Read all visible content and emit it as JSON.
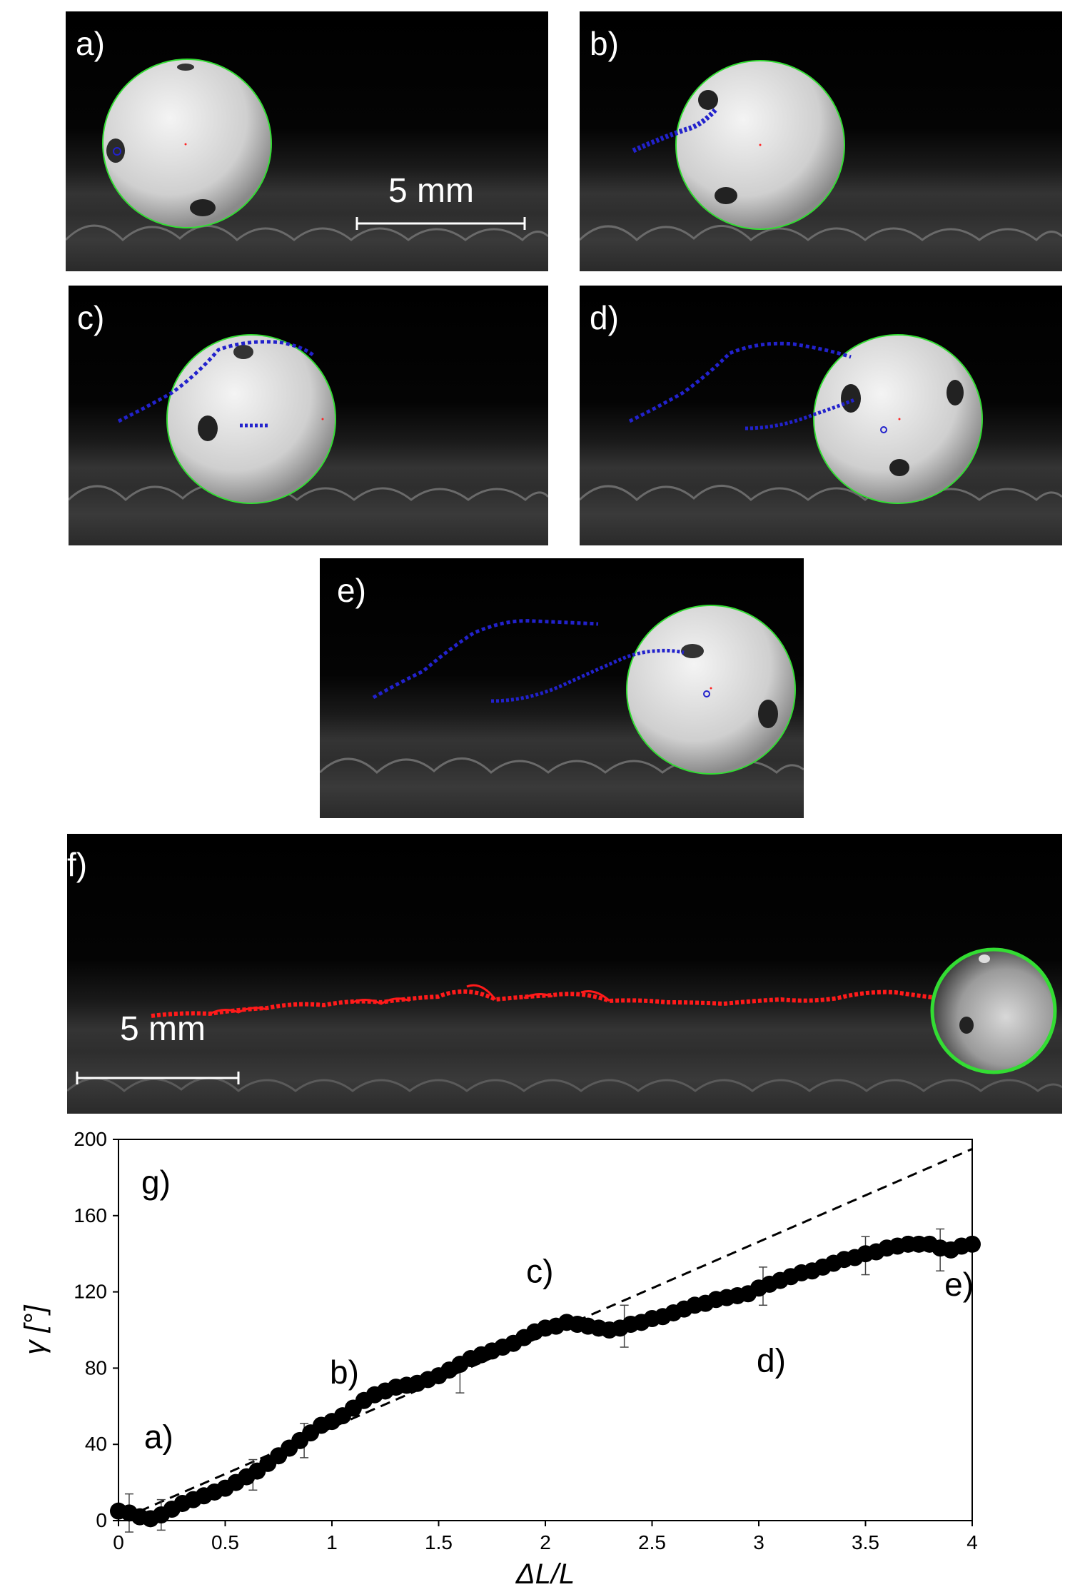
{
  "panels": {
    "a": {
      "label": "a)",
      "scale_label": "5 mm"
    },
    "b": {
      "label": "b)"
    },
    "c": {
      "label": "c)"
    },
    "d": {
      "label": "d)"
    },
    "e": {
      "label": "e)"
    },
    "f": {
      "label": "f)",
      "scale_label": "5 mm"
    }
  },
  "colors": {
    "circle": "#33dd33",
    "trajectory_blue": "#2222cc",
    "trajectory_red": "#ff1a1a",
    "center_dot": "#ff2222"
  },
  "chart_data": {
    "type": "scatter",
    "panel_label": "g)",
    "xlabel": "ΔL/L",
    "ylabel": "γ [°]",
    "xlim": [
      0,
      4
    ],
    "ylim": [
      0,
      200
    ],
    "xticks": [
      "0",
      "0.5",
      "1",
      "1.5",
      "2",
      "2.5",
      "3",
      "3.5",
      "4"
    ],
    "yticks": [
      "0",
      "40",
      "80",
      "120",
      "160",
      "200"
    ],
    "xtick_values": [
      0,
      0.5,
      1,
      1.5,
      2,
      2.5,
      3,
      3.5,
      4
    ],
    "ytick_values": [
      0,
      40,
      80,
      120,
      160,
      200
    ],
    "series": [
      {
        "values_x": [
          0,
          0.05,
          0.1,
          0.15,
          0.2,
          0.25,
          0.3,
          0.35,
          0.4,
          0.45,
          0.5,
          0.55,
          0.6,
          0.65,
          0.7,
          0.75,
          0.8,
          0.85,
          0.9,
          0.95,
          1.0,
          1.05,
          1.1,
          1.15,
          1.2,
          1.25,
          1.3,
          1.35,
          1.4,
          1.45,
          1.5,
          1.55,
          1.6,
          1.65,
          1.7,
          1.75,
          1.8,
          1.85,
          1.9,
          1.95,
          2.0,
          2.05,
          2.1,
          2.15,
          2.2,
          2.25,
          2.3,
          2.35,
          2.4,
          2.45,
          2.5,
          2.55,
          2.6,
          2.65,
          2.7,
          2.75,
          2.8,
          2.85,
          2.9,
          2.95,
          3.0,
          3.05,
          3.1,
          3.15,
          3.2,
          3.25,
          3.3,
          3.35,
          3.4,
          3.45,
          3.5,
          3.55,
          3.6,
          3.65,
          3.7,
          3.75,
          3.8,
          3.85,
          3.9,
          3.95,
          4.0
        ],
        "values_y": [
          5,
          4,
          2,
          1,
          3,
          6,
          9,
          11,
          13,
          15,
          17,
          20,
          23,
          26,
          30,
          34,
          38,
          42,
          46,
          50,
          52,
          55,
          59,
          63,
          66,
          68,
          70,
          71,
          72,
          74,
          76,
          79,
          82,
          85,
          87,
          89,
          91,
          93,
          96,
          99,
          101,
          102,
          104,
          103,
          102,
          101,
          100,
          101,
          103,
          104,
          106,
          107,
          109,
          111,
          113,
          114,
          116,
          117,
          118,
          119,
          122,
          124,
          126,
          128,
          130,
          131,
          133,
          135,
          137,
          138,
          140,
          141,
          143,
          144,
          145,
          145,
          145,
          143,
          142,
          144,
          145
        ],
        "error_bar_x": [
          0.05,
          0.2,
          0.63,
          0.87,
          1.6,
          2.37,
          3.02,
          3.5,
          3.85
        ],
        "error_bar_y": [
          4,
          3,
          24,
          42,
          76,
          102,
          123,
          139,
          142
        ],
        "error_bar_half": [
          10,
          8,
          8,
          9,
          9,
          11,
          10,
          10,
          11
        ]
      }
    ],
    "fit_line": {
      "x": [
        0.1,
        4
      ],
      "y": [
        5,
        195
      ],
      "style": "dashed"
    },
    "annotations": [
      {
        "text": "a)",
        "x": 0.12,
        "y": 38
      },
      {
        "text": "b)",
        "x": 0.99,
        "y": 72
      },
      {
        "text": "c)",
        "x": 1.91,
        "y": 125
      },
      {
        "text": "d)",
        "x": 2.99,
        "y": 78
      },
      {
        "text": "e)",
        "x": 3.87,
        "y": 118
      }
    ]
  }
}
